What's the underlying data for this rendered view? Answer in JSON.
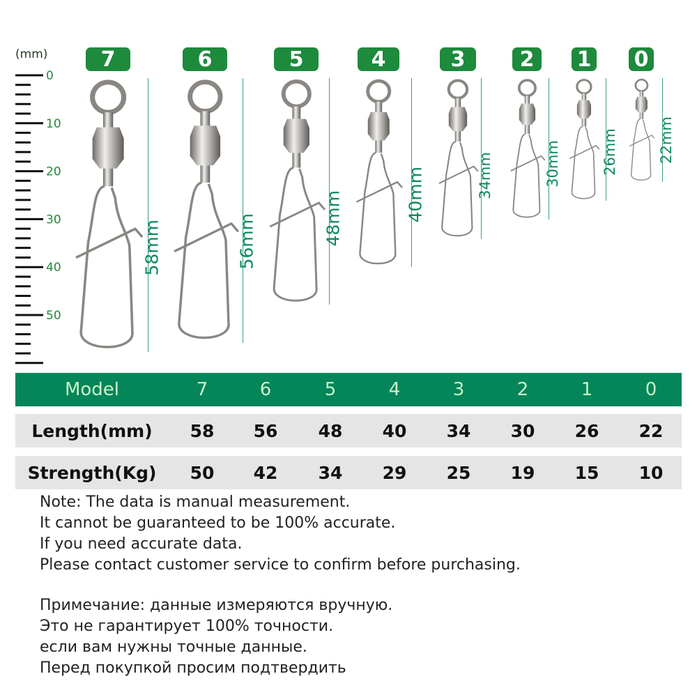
{
  "ruler": {
    "unit_label": "(mm)",
    "tick_labels": [
      "0",
      "10",
      "20",
      "30",
      "40",
      "50"
    ]
  },
  "models": [
    {
      "badge": "7",
      "length_label": "58mm",
      "length_mm": 58
    },
    {
      "badge": "6",
      "length_label": "56mm",
      "length_mm": 56
    },
    {
      "badge": "5",
      "length_label": "48mm",
      "length_mm": 48
    },
    {
      "badge": "4",
      "length_label": "40mm",
      "length_mm": 40
    },
    {
      "badge": "3",
      "length_label": "34mm",
      "length_mm": 34
    },
    {
      "badge": "2",
      "length_label": "30mm",
      "length_mm": 30
    },
    {
      "badge": "1",
      "length_label": "26mm",
      "length_mm": 26
    },
    {
      "badge": "0",
      "length_label": "22mm",
      "length_mm": 22
    }
  ],
  "table": {
    "header": [
      "Model",
      "7",
      "6",
      "5",
      "4",
      "3",
      "2",
      "1",
      "0"
    ],
    "rows": [
      [
        "Length(mm)",
        "58",
        "56",
        "48",
        "40",
        "34",
        "30",
        "26",
        "22"
      ],
      [
        "Strength(Kg)",
        "50",
        "42",
        "34",
        "29",
        "25",
        "19",
        "15",
        "10"
      ]
    ]
  },
  "notes_en": [
    "Note: The data is manual measurement.",
    "It cannot be guaranteed to be 100% accurate.",
    "If you need accurate data.",
    "Please contact customer service to confirm before purchasing."
  ],
  "notes_ru": [
    "Примечание: данные измеряются вручную.",
    "Это не гарантирует 100% точности.",
    "если вам нужны точные данные.",
    "Перед покупкой просим подтвердить"
  ],
  "colors": {
    "badge": "#1d8a3c",
    "header": "#05855a",
    "row": "#e5e5e5",
    "dimension": "#0b8a5c"
  }
}
